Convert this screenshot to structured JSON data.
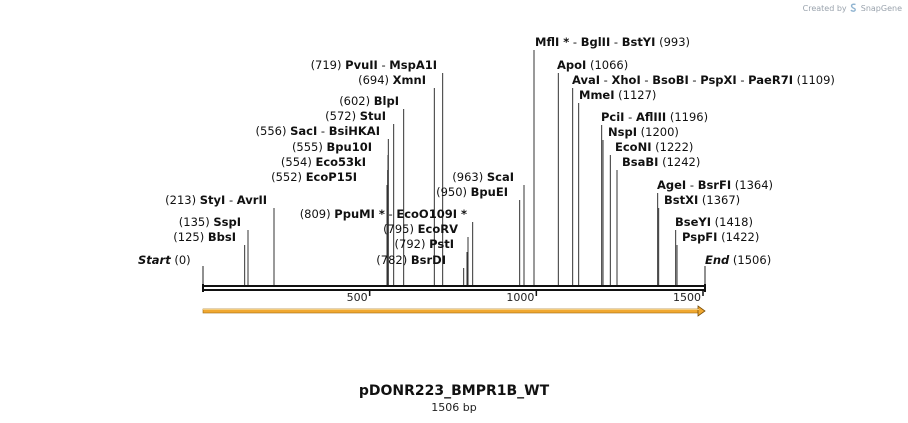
{
  "brand": {
    "created_by": "Created by",
    "app": "SnapGene"
  },
  "title": "pDONR223_BMPR1B_WT",
  "subtitle": "1506 bp",
  "sequence_length": 1506,
  "ticks": [
    500,
    1000,
    1500
  ],
  "feature": {
    "name": "orange-arrow-feature",
    "start": 0,
    "end": 1506,
    "color": "#f0a830"
  },
  "sites": [
    {
      "id": "start",
      "pos": 0,
      "names": [
        "Start"
      ],
      "label": "(0)",
      "italic": true,
      "side": "after"
    },
    {
      "id": "bbsi",
      "pos": 125,
      "names": [
        "BbsI"
      ],
      "label": "(125)",
      "side": "before"
    },
    {
      "id": "sspi",
      "pos": 135,
      "names": [
        "SspI"
      ],
      "label": "(135)",
      "side": "before"
    },
    {
      "id": "styi",
      "pos": 213,
      "names": [
        "StyI",
        "AvrII"
      ],
      "label": "(213)",
      "side": "before"
    },
    {
      "id": "ecop15i",
      "pos": 552,
      "names": [
        "EcoP15I"
      ],
      "label": "(552)",
      "side": "before"
    },
    {
      "id": "eco53ki",
      "pos": 554,
      "names": [
        "Eco53kI"
      ],
      "label": "(554)",
      "side": "before"
    },
    {
      "id": "bpu10i",
      "pos": 555,
      "names": [
        "Bpu10I"
      ],
      "label": "(555)",
      "side": "before"
    },
    {
      "id": "saci",
      "pos": 556,
      "names": [
        "SacI",
        "BsiHKAI"
      ],
      "label": "(556)",
      "side": "before"
    },
    {
      "id": "stui",
      "pos": 572,
      "names": [
        "StuI"
      ],
      "label": "(572)",
      "side": "before"
    },
    {
      "id": "blpi",
      "pos": 602,
      "names": [
        "BlpI"
      ],
      "label": "(602)",
      "side": "before"
    },
    {
      "id": "xmni",
      "pos": 694,
      "names": [
        "XmnI"
      ],
      "label": "(694)",
      "side": "before"
    },
    {
      "id": "pvuii",
      "pos": 719,
      "names": [
        "PvuII",
        "MspA1I"
      ],
      "label": "(719)",
      "side": "before"
    },
    {
      "id": "bsrdi",
      "pos": 782,
      "names": [
        "BsrDI"
      ],
      "label": "(782)",
      "side": "before"
    },
    {
      "id": "psti",
      "pos": 792,
      "names": [
        "PstI"
      ],
      "label": "(792)",
      "side": "before"
    },
    {
      "id": "ecorv",
      "pos": 795,
      "names": [
        "EcoRV"
      ],
      "label": "(795)",
      "side": "before"
    },
    {
      "id": "ppumi",
      "pos": 809,
      "names": [
        "PpuMI *",
        "EcoO109I *"
      ],
      "label": "(809)",
      "side": "before"
    },
    {
      "id": "bpuei",
      "pos": 950,
      "names": [
        "BpuEI"
      ],
      "label": "(950)",
      "side": "before"
    },
    {
      "id": "scai",
      "pos": 963,
      "names": [
        "ScaI"
      ],
      "label": "(963)",
      "side": "before"
    },
    {
      "id": "mfli",
      "pos": 993,
      "names": [
        "MflI *",
        "BglII",
        "BstYI"
      ],
      "label": "(993)",
      "side": "after"
    },
    {
      "id": "apoi",
      "pos": 1066,
      "names": [
        "ApoI"
      ],
      "label": "(1066)",
      "side": "after"
    },
    {
      "id": "avai",
      "pos": 1109,
      "names": [
        "AvaI",
        "XhoI",
        "BsoBI",
        "PspXI",
        "PaeR7I"
      ],
      "label": "(1109)",
      "side": "after"
    },
    {
      "id": "mmei",
      "pos": 1127,
      "names": [
        "MmeI"
      ],
      "label": "(1127)",
      "side": "after"
    },
    {
      "id": "pcii",
      "pos": 1196,
      "names": [
        "PciI",
        "AflIII"
      ],
      "label": "(1196)",
      "side": "after"
    },
    {
      "id": "nspi",
      "pos": 1200,
      "names": [
        "NspI"
      ],
      "label": "(1200)",
      "side": "after"
    },
    {
      "id": "econi",
      "pos": 1222,
      "names": [
        "EcoNI"
      ],
      "label": "(1222)",
      "side": "after"
    },
    {
      "id": "bsabi",
      "pos": 1242,
      "names": [
        "BsaBI"
      ],
      "label": "(1242)",
      "side": "after"
    },
    {
      "id": "agei",
      "pos": 1364,
      "names": [
        "AgeI",
        "BsrFI"
      ],
      "label": "(1364)",
      "side": "after"
    },
    {
      "id": "bstxi",
      "pos": 1367,
      "names": [
        "BstXI"
      ],
      "label": "(1367)",
      "side": "after"
    },
    {
      "id": "bseyi",
      "pos": 1418,
      "names": [
        "BseYI"
      ],
      "label": "(1418)",
      "side": "after"
    },
    {
      "id": "psppfi",
      "pos": 1422,
      "names": [
        "PspFI"
      ],
      "label": "(1422)",
      "side": "after"
    },
    {
      "id": "end",
      "pos": 1506,
      "names": [
        "End"
      ],
      "label": "(1506)",
      "italic": true,
      "side": "after"
    }
  ]
}
